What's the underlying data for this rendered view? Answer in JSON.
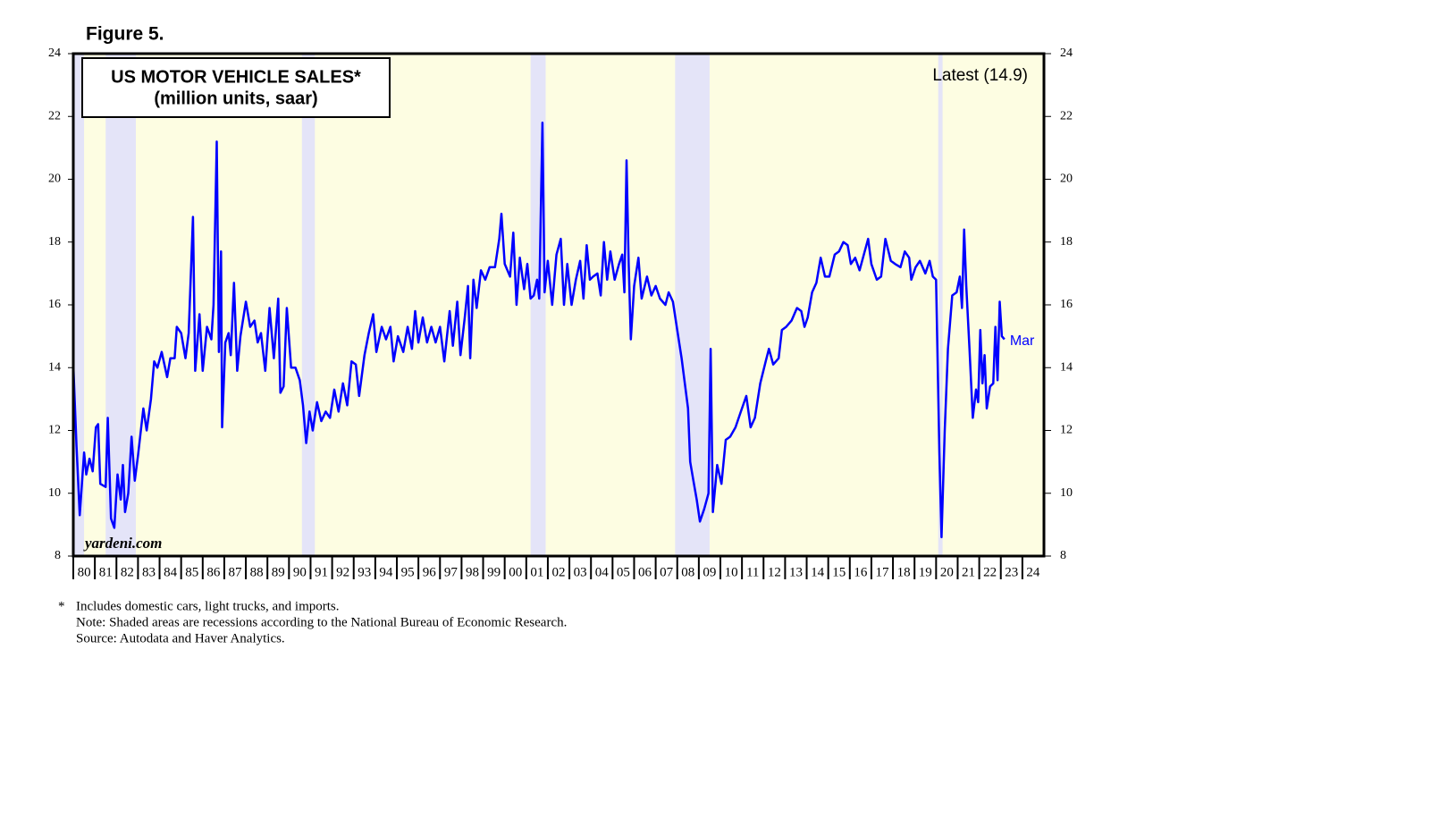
{
  "chart_data": {
    "type": "line",
    "figure_label": "Figure 5.",
    "title": "US MOTOR VEHICLE SALES*",
    "subtitle": "(million units, saar)",
    "annotation": "Latest (14.9)",
    "end_label": "Mar",
    "watermark": "yardeni.com",
    "footnote_marker": "*",
    "footnotes": [
      "Includes domestic cars, light trucks, and imports.",
      "Note: Shaded areas are recessions according to the National Bureau of Economic Research.",
      "Source: Autodata and Haver Analytics."
    ],
    "background_color": "#fdfde2",
    "recession_color": "#e4e4f8",
    "recessions": [
      [
        1980.0,
        1980.5
      ],
      [
        1981.5,
        1982.9
      ],
      [
        1990.6,
        1991.2
      ],
      [
        2001.2,
        2001.9
      ],
      [
        2007.9,
        2009.5
      ],
      [
        2020.1,
        2020.3
      ]
    ],
    "xlim": [
      1980,
      2025
    ],
    "xticks": [
      {
        "value": 1980,
        "label": "80"
      },
      {
        "value": 1981,
        "label": "81"
      },
      {
        "value": 1982,
        "label": "82"
      },
      {
        "value": 1983,
        "label": "83"
      },
      {
        "value": 1984,
        "label": "84"
      },
      {
        "value": 1985,
        "label": "85"
      },
      {
        "value": 1986,
        "label": "86"
      },
      {
        "value": 1987,
        "label": "87"
      },
      {
        "value": 1988,
        "label": "88"
      },
      {
        "value": 1989,
        "label": "89"
      },
      {
        "value": 1990,
        "label": "90"
      },
      {
        "value": 1991,
        "label": "91"
      },
      {
        "value": 1992,
        "label": "92"
      },
      {
        "value": 1993,
        "label": "93"
      },
      {
        "value": 1994,
        "label": "94"
      },
      {
        "value": 1995,
        "label": "95"
      },
      {
        "value": 1996,
        "label": "96"
      },
      {
        "value": 1997,
        "label": "97"
      },
      {
        "value": 1998,
        "label": "98"
      },
      {
        "value": 1999,
        "label": "99"
      },
      {
        "value": 2000,
        "label": "00"
      },
      {
        "value": 2001,
        "label": "01"
      },
      {
        "value": 2002,
        "label": "02"
      },
      {
        "value": 2003,
        "label": "03"
      },
      {
        "value": 2004,
        "label": "04"
      },
      {
        "value": 2005,
        "label": "05"
      },
      {
        "value": 2006,
        "label": "06"
      },
      {
        "value": 2007,
        "label": "07"
      },
      {
        "value": 2008,
        "label": "08"
      },
      {
        "value": 2009,
        "label": "09"
      },
      {
        "value": 2010,
        "label": "10"
      },
      {
        "value": 2011,
        "label": "11"
      },
      {
        "value": 2012,
        "label": "12"
      },
      {
        "value": 2013,
        "label": "13"
      },
      {
        "value": 2014,
        "label": "14"
      },
      {
        "value": 2015,
        "label": "15"
      },
      {
        "value": 2016,
        "label": "16"
      },
      {
        "value": 2017,
        "label": "17"
      },
      {
        "value": 2018,
        "label": "18"
      },
      {
        "value": 2019,
        "label": "19"
      },
      {
        "value": 2020,
        "label": "20"
      },
      {
        "value": 2021,
        "label": "21"
      },
      {
        "value": 2022,
        "label": "22"
      },
      {
        "value": 2023,
        "label": "23"
      },
      {
        "value": 2024,
        "label": "24"
      }
    ],
    "ylim": [
      8,
      24
    ],
    "yticks": [
      8,
      10,
      12,
      14,
      16,
      18,
      20,
      22,
      24
    ],
    "y2lim": [
      8,
      24
    ],
    "y2ticks": [
      8,
      10,
      12,
      14,
      16,
      18,
      20,
      22,
      24
    ],
    "series": [
      {
        "color": "#0000ff",
        "x": [
          1980.0,
          1980.15,
          1980.3,
          1980.5,
          1980.6,
          1980.75,
          1980.9,
          1981.05,
          1981.15,
          1981.25,
          1981.5,
          1981.6,
          1981.75,
          1981.9,
          1982.05,
          1982.2,
          1982.3,
          1982.4,
          1982.55,
          1982.7,
          1982.85,
          1983.0,
          1983.25,
          1983.4,
          1983.6,
          1983.75,
          1983.9,
          1984.1,
          1984.35,
          1984.5,
          1984.7,
          1984.8,
          1985.0,
          1985.2,
          1985.35,
          1985.55,
          1985.65,
          1985.85,
          1986.0,
          1986.2,
          1986.4,
          1986.5,
          1986.65,
          1986.75,
          1986.85,
          1986.9,
          1987.05,
          1987.2,
          1987.3,
          1987.45,
          1987.6,
          1987.75,
          1988.0,
          1988.2,
          1988.4,
          1988.55,
          1988.7,
          1988.9,
          1989.1,
          1989.3,
          1989.5,
          1989.6,
          1989.75,
          1989.9,
          1990.1,
          1990.3,
          1990.5,
          1990.65,
          1990.8,
          1990.95,
          1991.1,
          1991.3,
          1991.5,
          1991.7,
          1991.9,
          1992.1,
          1992.3,
          1992.5,
          1992.7,
          1992.9,
          1993.1,
          1993.25,
          1993.5,
          1993.7,
          1993.9,
          1994.05,
          1994.3,
          1994.5,
          1994.7,
          1994.85,
          1995.05,
          1995.3,
          1995.5,
          1995.7,
          1995.85,
          1996.0,
          1996.2,
          1996.4,
          1996.6,
          1996.8,
          1997.0,
          1997.2,
          1997.45,
          1997.6,
          1997.8,
          1997.95,
          1998.15,
          1998.3,
          1998.4,
          1998.55,
          1998.7,
          1998.9,
          1999.1,
          1999.3,
          1999.55,
          1999.75,
          1999.85,
          2000.0,
          2000.25,
          2000.4,
          2000.55,
          2000.7,
          2000.9,
          2001.05,
          2001.2,
          2001.35,
          2001.5,
          2001.6,
          2001.75,
          2001.85,
          2002.0,
          2002.2,
          2002.4,
          2002.6,
          2002.75,
          2002.9,
          2003.1,
          2003.3,
          2003.5,
          2003.65,
          2003.8,
          2003.95,
          2004.1,
          2004.3,
          2004.45,
          2004.6,
          2004.75,
          2004.9,
          2005.1,
          2005.3,
          2005.45,
          2005.55,
          2005.65,
          2005.75,
          2005.85,
          2006.0,
          2006.2,
          2006.35,
          2006.6,
          2006.8,
          2007.0,
          2007.2,
          2007.45,
          2007.6,
          2007.8,
          2008.0,
          2008.2,
          2008.35,
          2008.5,
          2008.6,
          2008.75,
          2008.9,
          2009.05,
          2009.25,
          2009.45,
          2009.55,
          2009.65,
          2009.85,
          2010.05,
          2010.25,
          2010.45,
          2010.7,
          2010.95,
          2011.2,
          2011.4,
          2011.6,
          2011.85,
          2012.1,
          2012.25,
          2012.45,
          2012.7,
          2012.85,
          2013.05,
          2013.3,
          2013.55,
          2013.75,
          2013.9,
          2014.05,
          2014.25,
          2014.45,
          2014.65,
          2014.85,
          2015.05,
          2015.3,
          2015.5,
          2015.7,
          2015.9,
          2016.05,
          2016.25,
          2016.45,
          2016.65,
          2016.85,
          2017.0,
          2017.25,
          2017.45,
          2017.65,
          2017.9,
          2018.1,
          2018.35,
          2018.55,
          2018.75,
          2018.85,
          2019.05,
          2019.25,
          2019.5,
          2019.7,
          2019.85,
          2020.0,
          2020.15,
          2020.25,
          2020.4,
          2020.55,
          2020.75,
          2020.95,
          2021.1,
          2021.2,
          2021.3,
          2021.4,
          2021.55,
          2021.7,
          2021.85,
          2021.95,
          2022.05,
          2022.15,
          2022.25,
          2022.35,
          2022.5,
          2022.65,
          2022.75,
          2022.85,
          2022.95,
          2023.05,
          2023.17
        ],
        "values": [
          14.1,
          11.5,
          9.3,
          11.3,
          10.6,
          11.1,
          10.7,
          12.1,
          12.2,
          10.3,
          10.2,
          12.4,
          9.2,
          8.9,
          10.6,
          9.8,
          10.9,
          9.4,
          10.0,
          11.8,
          10.4,
          11.2,
          12.7,
          12.0,
          13.0,
          14.2,
          14.0,
          14.5,
          13.7,
          14.3,
          14.3,
          15.3,
          15.1,
          14.3,
          15.1,
          18.8,
          13.9,
          15.7,
          13.9,
          15.3,
          14.9,
          16.0,
          21.2,
          14.5,
          17.7,
          12.1,
          14.8,
          15.1,
          14.4,
          16.7,
          13.9,
          15.0,
          16.1,
          15.3,
          15.5,
          14.8,
          15.1,
          13.9,
          15.9,
          14.3,
          16.2,
          13.2,
          13.4,
          15.9,
          14.0,
          14.0,
          13.6,
          12.8,
          11.6,
          12.6,
          12.0,
          12.9,
          12.3,
          12.6,
          12.4,
          13.3,
          12.6,
          13.5,
          12.8,
          14.2,
          14.1,
          13.1,
          14.4,
          15.1,
          15.7,
          14.5,
          15.3,
          14.9,
          15.3,
          14.2,
          15.0,
          14.5,
          15.3,
          14.6,
          15.8,
          14.8,
          15.6,
          14.8,
          15.3,
          14.8,
          15.3,
          14.2,
          15.8,
          14.7,
          16.1,
          14.4,
          15.6,
          16.6,
          14.3,
          16.8,
          15.9,
          17.1,
          16.8,
          17.2,
          17.2,
          18.1,
          18.9,
          17.3,
          16.9,
          18.3,
          16.0,
          17.5,
          16.5,
          17.3,
          16.2,
          16.3,
          16.8,
          16.2,
          21.8,
          16.4,
          17.4,
          16.0,
          17.6,
          18.1,
          16.0,
          17.3,
          16.0,
          16.8,
          17.4,
          16.2,
          17.9,
          16.8,
          16.9,
          17.0,
          16.3,
          18.0,
          16.8,
          17.7,
          16.8,
          17.3,
          17.6,
          16.4,
          20.6,
          17.3,
          14.9,
          16.6,
          17.5,
          16.2,
          16.9,
          16.3,
          16.6,
          16.2,
          16.0,
          16.4,
          16.1,
          15.2,
          14.3,
          13.5,
          12.7,
          11.0,
          10.4,
          9.8,
          9.1,
          9.5,
          10.0,
          14.6,
          9.4,
          10.9,
          10.3,
          11.7,
          11.8,
          12.1,
          12.6,
          13.1,
          12.1,
          12.4,
          13.5,
          14.2,
          14.6,
          14.1,
          14.3,
          15.2,
          15.3,
          15.5,
          15.9,
          15.8,
          15.3,
          15.6,
          16.4,
          16.7,
          17.5,
          16.9,
          16.9,
          17.6,
          17.7,
          18.0,
          17.9,
          17.3,
          17.5,
          17.1,
          17.6,
          18.1,
          17.3,
          16.8,
          16.9,
          18.1,
          17.4,
          17.3,
          17.2,
          17.7,
          17.5,
          16.8,
          17.2,
          17.4,
          17.0,
          17.4,
          16.9,
          16.8,
          11.3,
          8.6,
          12.0,
          14.6,
          16.3,
          16.4,
          16.9,
          15.9,
          18.4,
          16.6,
          14.6,
          12.4,
          13.3,
          12.9,
          15.2,
          13.5,
          14.4,
          12.7,
          13.4,
          13.5,
          15.3,
          13.6,
          16.1,
          15.0,
          14.9
        ]
      }
    ]
  }
}
